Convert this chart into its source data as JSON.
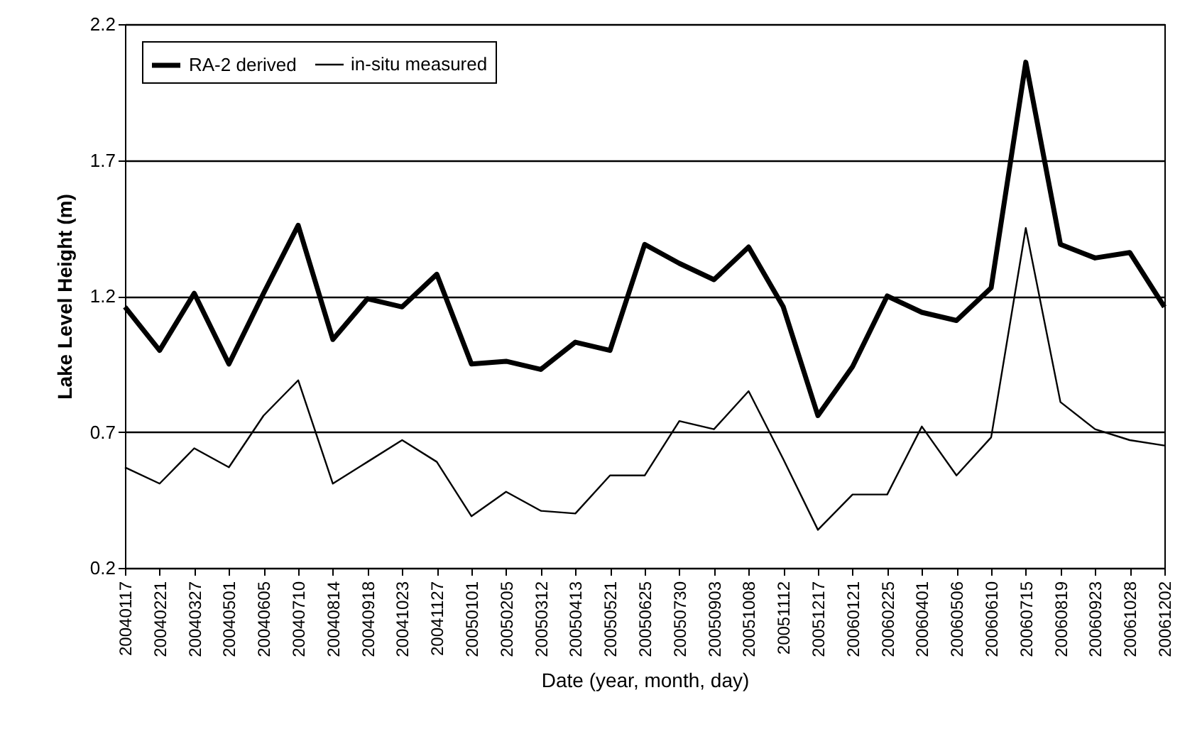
{
  "chart_data": {
    "type": "line",
    "xlabel": "Date (year, month, day)",
    "ylabel": "Lake Level Height (m)",
    "categories": [
      "20040117",
      "20040221",
      "20040327",
      "20040501",
      "20040605",
      "20040710",
      "20040814",
      "20040918",
      "20041023",
      "20041127",
      "20050101",
      "20050205",
      "20050312",
      "20050413",
      "20050521",
      "20050625",
      "20050730",
      "20050903",
      "20051008",
      "20051112",
      "20051217",
      "20060121",
      "20060225",
      "20060401",
      "20060506",
      "20060610",
      "20060715",
      "20060819",
      "20060923",
      "20061028",
      "20061202"
    ],
    "series": [
      {
        "name": "RA-2 derived",
        "color": "#000000",
        "values": [
          1.16,
          1.0,
          1.21,
          0.95,
          1.21,
          1.46,
          1.04,
          1.19,
          1.16,
          1.28,
          0.95,
          0.96,
          0.93,
          1.03,
          1.0,
          1.39,
          1.32,
          1.26,
          1.38,
          1.16,
          0.76,
          0.94,
          1.2,
          1.14,
          1.11,
          1.23,
          2.06,
          1.39,
          1.34,
          1.36,
          1.16
        ]
      },
      {
        "name": "in-situ measured",
        "color": "#000000",
        "values": [
          0.57,
          0.51,
          0.64,
          0.57,
          0.76,
          0.89,
          0.51,
          0.59,
          0.67,
          0.59,
          0.39,
          0.48,
          0.41,
          0.4,
          0.54,
          0.54,
          0.74,
          0.71,
          0.85,
          0.6,
          0.34,
          0.47,
          0.47,
          0.72,
          0.54,
          0.68,
          1.45,
          0.81,
          0.71,
          0.67,
          0.65
        ]
      }
    ],
    "ylim": [
      0.2,
      2.2
    ],
    "yticks": [
      0.2,
      0.7,
      1.2,
      1.7,
      2.2
    ],
    "grid": "y",
    "legend": "top left"
  }
}
